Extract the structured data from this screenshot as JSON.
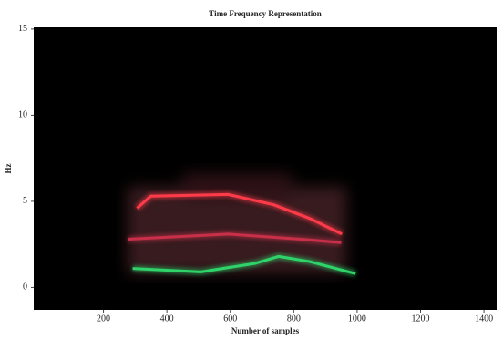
{
  "chart_data": {
    "type": "line",
    "title": "Time Frequency Representation",
    "x_label": "Number of samples",
    "y_label": "Hz",
    "background": "#000000",
    "xlim": [
      -20,
      1440
    ],
    "xticks": [
      200,
      400,
      600,
      800,
      1000,
      1200,
      1400
    ],
    "ylim": [
      -1.3,
      15.1
    ],
    "yticks": [
      0,
      5,
      10,
      15
    ],
    "series": [
      {
        "color": "#ff3b4a",
        "x": [
          306,
          349,
          593,
          737,
          851,
          952
        ],
        "values": [
          4.6,
          5.3,
          5.4,
          4.8,
          4.0,
          3.1
        ]
      },
      {
        "color": "#c8304a",
        "x": [
          277,
          593,
          823,
          950
        ],
        "values": [
          2.8,
          3.1,
          2.8,
          2.6
        ]
      },
      {
        "color": "#2fd36a",
        "x": [
          292,
          507,
          679,
          752,
          851,
          995
        ],
        "values": [
          1.1,
          0.9,
          1.4,
          1.8,
          1.5,
          0.8
        ]
      }
    ]
  }
}
